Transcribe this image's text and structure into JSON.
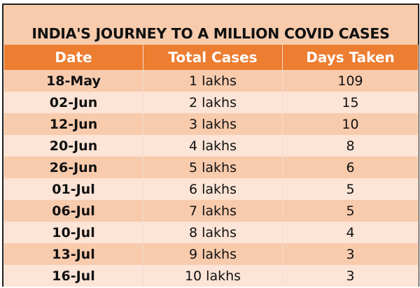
{
  "title": "INDIA'S JOURNEY TO A MILLION COVID CASES",
  "columns": [
    "Date",
    "Total Cases",
    "Days Taken"
  ],
  "rows": [
    {
      "date": "18-May",
      "cases": "1 lakhs",
      "days": "109"
    },
    {
      "date": "02-Jun",
      "cases": "2 lakhs",
      "days": "15"
    },
    {
      "date": "12-Jun",
      "cases": "3 lakhs",
      "days": "10"
    },
    {
      "date": "20-Jun",
      "cases": "4 lakhs",
      "days": "8"
    },
    {
      "date": "26-Jun",
      "cases": "5 lakhs",
      "days": "6"
    },
    {
      "date": "01-Jul",
      "cases": "6 lakhs",
      "days": "5"
    },
    {
      "date": "06-Jul",
      "cases": "7 lakhs",
      "days": "5"
    },
    {
      "date": "10-Jul",
      "cases": "8 lakhs",
      "days": "4"
    },
    {
      "date": "13-Jul",
      "cases": "9 lakhs",
      "days": "3"
    },
    {
      "date": "16-Jul",
      "cases": "10 lakhs",
      "days": "3"
    }
  ],
  "colors": {
    "header": "#ed7d31",
    "row_dark": "#f8cbad",
    "row_light": "#fce4d6"
  }
}
